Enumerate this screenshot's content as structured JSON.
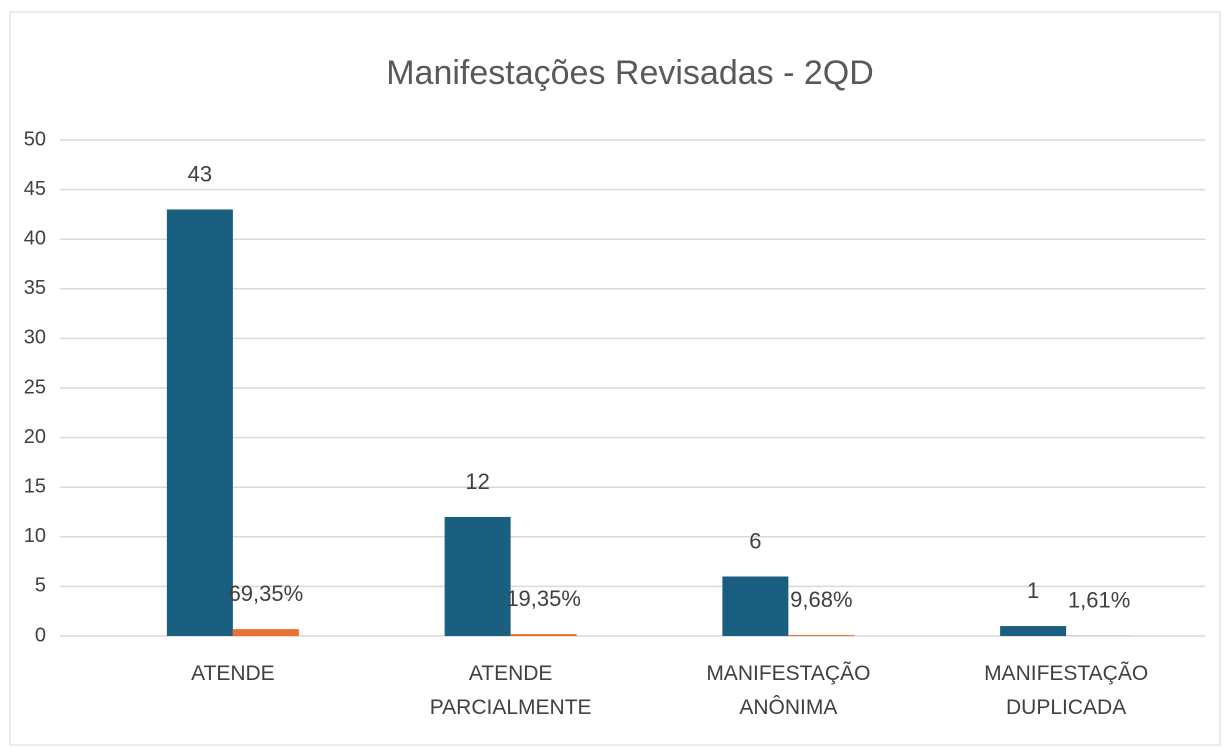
{
  "chart_data": {
    "type": "bar",
    "title": "Manifestações Revisadas - 2QD",
    "categories": [
      "ATENDE",
      "ATENDE PARCIALMENTE",
      "MANIFESTAÇÃO ANÔNIMA",
      "MANIFESTAÇÃO DUPLICADA"
    ],
    "series": [
      {
        "color": "#1a5e80",
        "values": [
          43,
          12,
          6,
          1
        ]
      },
      {
        "color": "#e97132",
        "values": [
          0.6935,
          0.1935,
          0.0968,
          0.0161
        ],
        "value_labels": [
          "69,35%",
          "19,35%",
          "9,68%",
          "1,61%"
        ]
      }
    ],
    "ylim": [
      0,
      50
    ],
    "yticks": [
      0,
      5,
      10,
      15,
      20,
      25,
      30,
      35,
      40,
      45,
      50
    ],
    "grid": true
  }
}
